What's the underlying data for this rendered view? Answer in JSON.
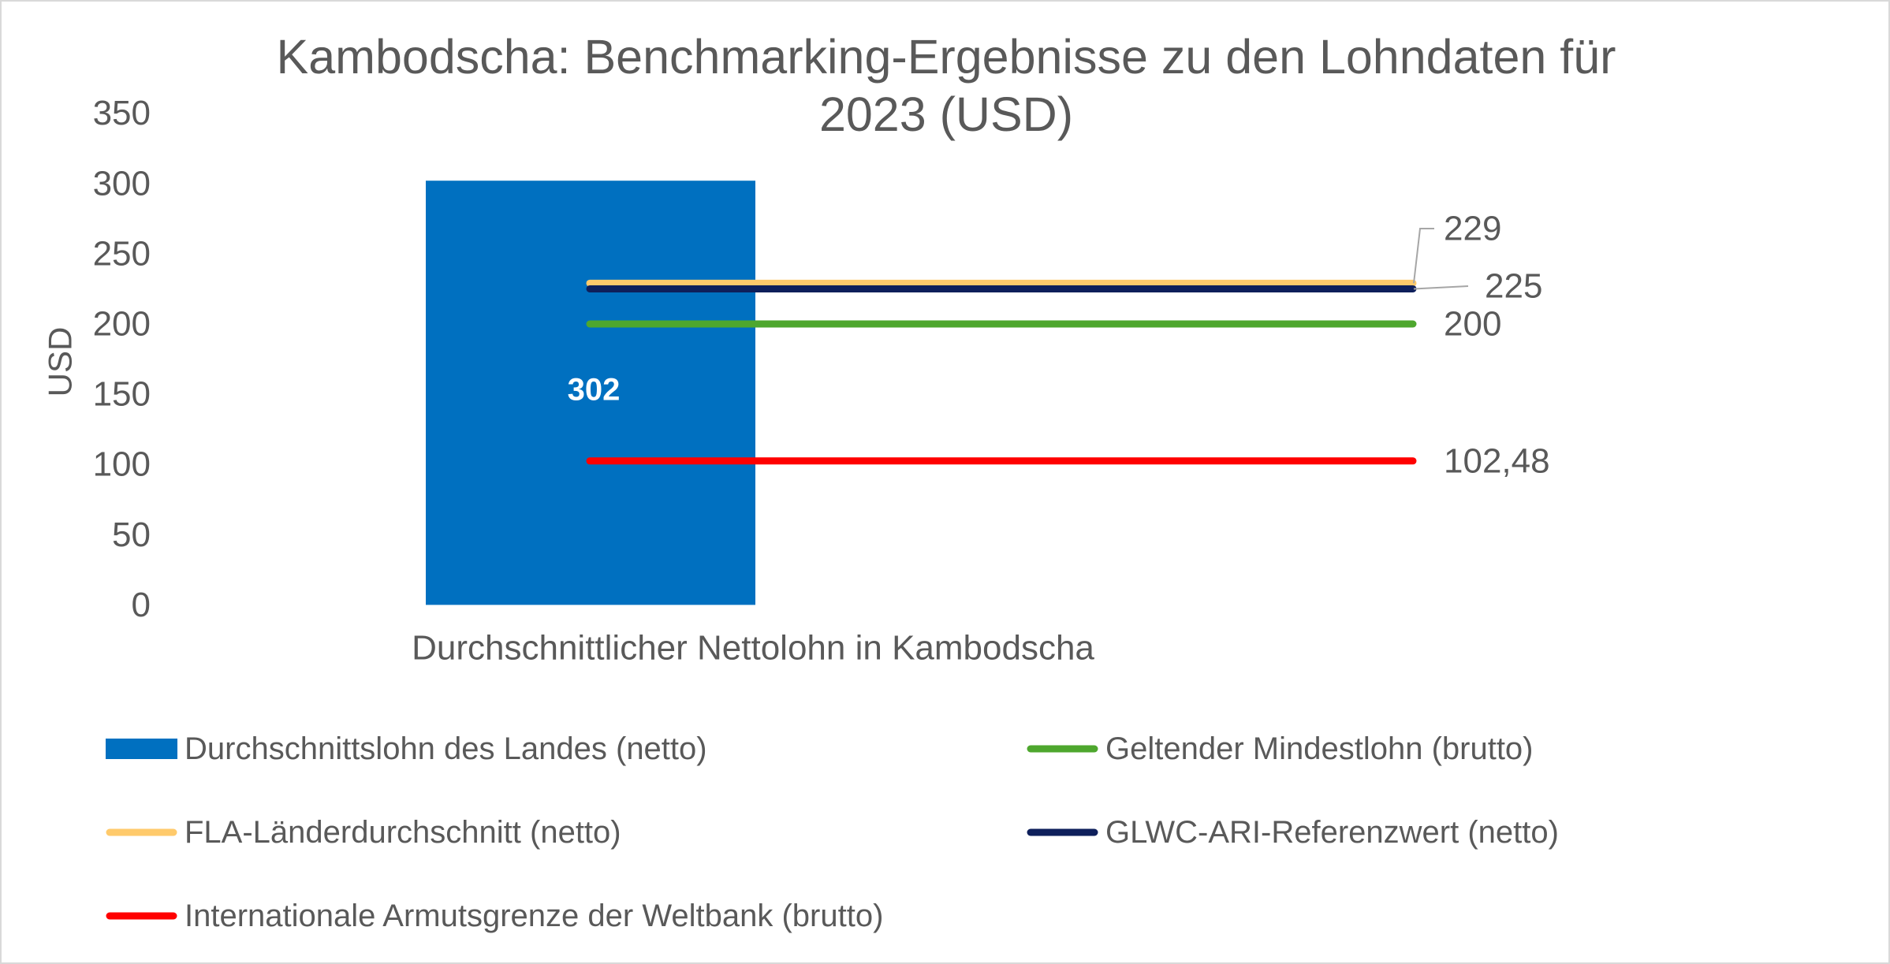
{
  "chart_data": {
    "type": "bar",
    "title_lines": [
      "Kambodscha: Benchmarking-Ergebnisse zu den Lohndaten für",
      "2023 (USD)"
    ],
    "ylabel": "USD",
    "categories": [
      "Durchschnittlicher Nettolohn in Kambodscha"
    ],
    "ylim": [
      0,
      350
    ],
    "yticks": [
      0,
      50,
      100,
      150,
      200,
      250,
      300,
      350
    ],
    "series": [
      {
        "name": "Durchschnittslohn des Landes (netto)",
        "kind": "bar",
        "values": [
          302
        ],
        "label": "302",
        "color": "#0070C0"
      },
      {
        "name": "Geltender Mindestlohn (brutto)",
        "kind": "line",
        "values": [
          200
        ],
        "label": "200",
        "color": "#4EA72E"
      },
      {
        "name": "FLA-Länderdurchschnitt (netto)",
        "kind": "line",
        "values": [
          229
        ],
        "label": "229",
        "color": "#FFCA6B"
      },
      {
        "name": "GLWC-ARI-Referenzwert (netto)",
        "kind": "line",
        "values": [
          225
        ],
        "label": "225",
        "color": "#0E1F5B"
      },
      {
        "name": "Internationale Armutsgrenze der Weltbank (brutto)",
        "kind": "line",
        "values": [
          102.48
        ],
        "label": "102,48",
        "color": "#FF0000"
      }
    ],
    "legend_position": "bottom",
    "grid": false
  },
  "colors": {
    "text": "#595959",
    "border": "#D9D9D9",
    "leader": "#A6A6A6",
    "bar_label": "#FFFFFF"
  }
}
